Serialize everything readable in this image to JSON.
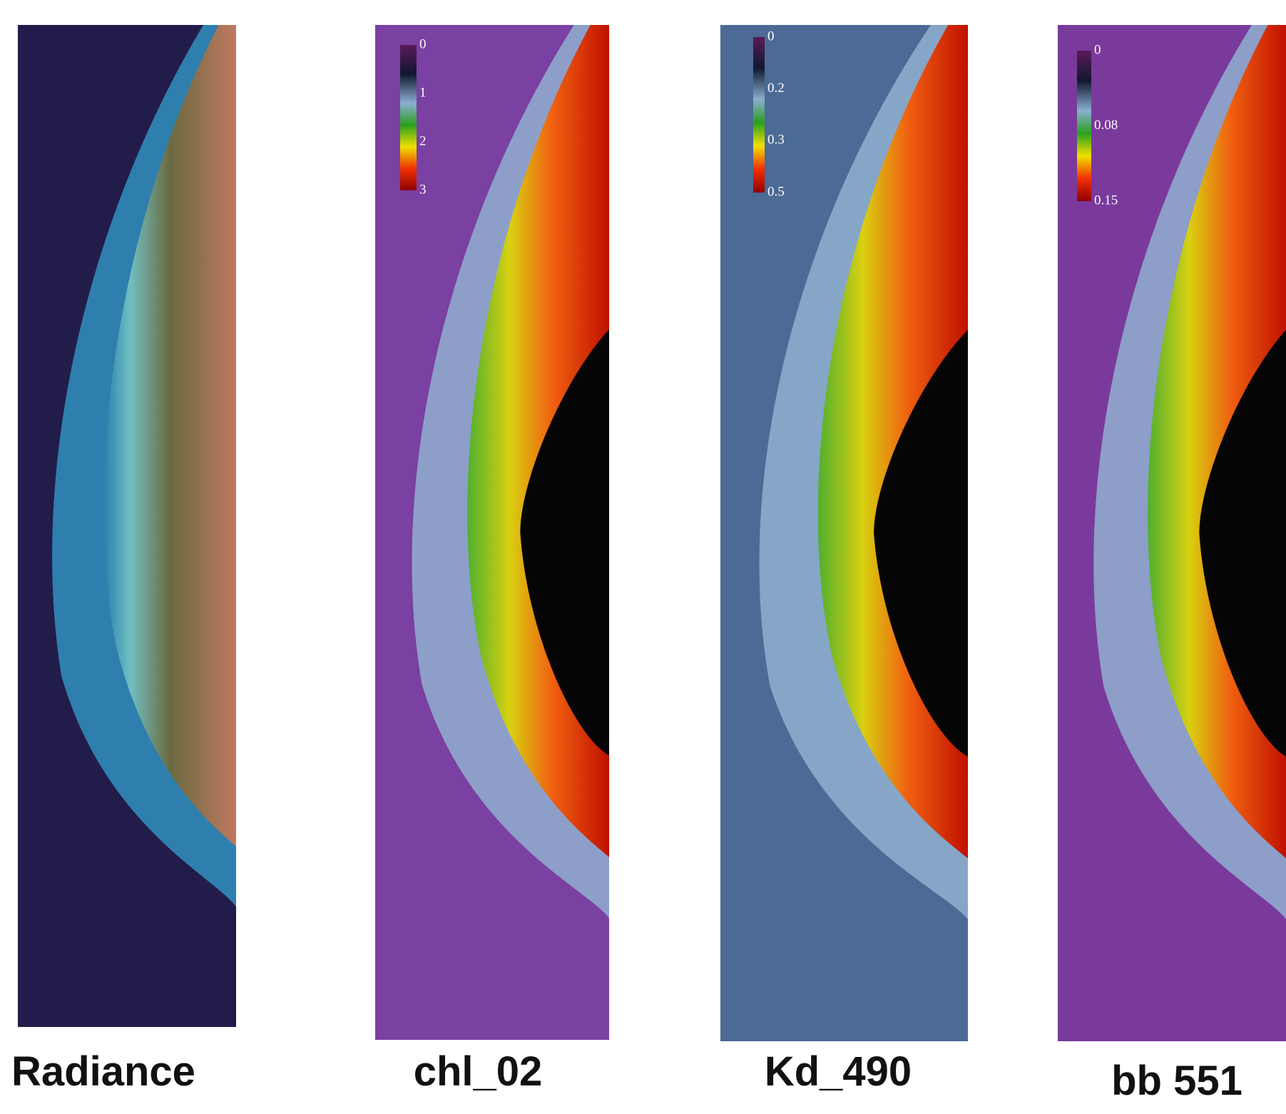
{
  "panels": [
    {
      "label": "Radiance"
    },
    {
      "label": "chl_02",
      "colorbar": {
        "ticks": [
          "0",
          "1",
          "2",
          "3"
        ]
      }
    },
    {
      "label": "Kd_490",
      "colorbar": {
        "ticks": [
          "0",
          "0.2",
          "0.3",
          "0.5"
        ]
      }
    },
    {
      "label": "bb 551",
      "colorbar": {
        "ticks": [
          "0",
          "0.08",
          "0.15"
        ]
      }
    }
  ]
}
